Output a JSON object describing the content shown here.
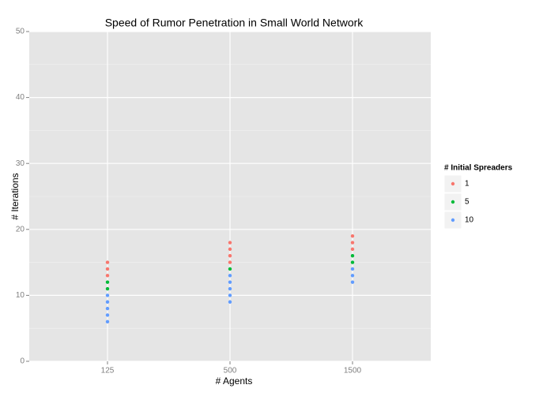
{
  "chart_data": {
    "type": "scatter",
    "title": "Speed of Rumor Penetration in Small World Network",
    "x_label": "# Agents",
    "y_label": "# Iterations",
    "categories": [
      "125",
      "500",
      "1500"
    ],
    "legend_title": "# Initial Spreaders",
    "series": [
      {
        "name": "1",
        "color": "#F8766D",
        "x": [
          "125",
          "125",
          "125",
          "500",
          "500",
          "500",
          "500",
          "1500",
          "1500",
          "1500"
        ],
        "values": [
          15,
          14,
          13,
          18,
          17,
          16,
          15,
          19,
          18,
          17
        ]
      },
      {
        "name": "5",
        "color": "#00BA38",
        "x": [
          "125",
          "125",
          "500",
          "1500",
          "1500"
        ],
        "values": [
          12,
          11,
          14,
          16,
          15
        ]
      },
      {
        "name": "10",
        "color": "#619CFF",
        "x": [
          "125",
          "125",
          "125",
          "125",
          "125",
          "500",
          "500",
          "500",
          "500",
          "500",
          "1500",
          "1500",
          "1500"
        ],
        "values": [
          10,
          9,
          8,
          7,
          6,
          13,
          12,
          11,
          10,
          9,
          14,
          13,
          12
        ]
      }
    ],
    "ylim": [
      0,
      50
    ],
    "yticks": [
      0,
      10,
      20,
      30,
      40,
      50
    ],
    "grid": true,
    "legend": "right"
  }
}
